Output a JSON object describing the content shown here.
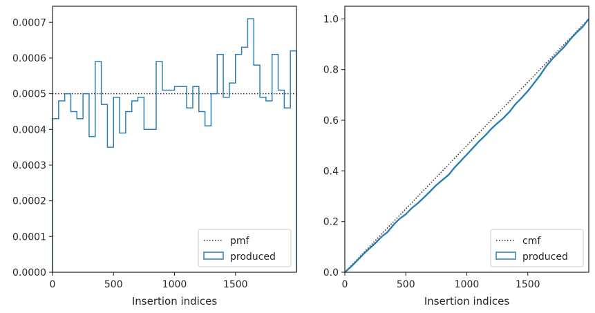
{
  "colors": {
    "produced": "#2a7fb0",
    "reference": "#262626",
    "axes": "#262626"
  },
  "chart_data": [
    {
      "type": "step",
      "xlabel": "Insertion indices",
      "ylabel": "",
      "xlim": [
        0,
        2000
      ],
      "ylim": [
        0,
        0.000745
      ],
      "xticks": [
        0,
        500,
        1000,
        1500
      ],
      "xtick_labels": [
        "0",
        "500",
        "1000",
        "1500"
      ],
      "yticks": [
        0,
        0.0001,
        0.0002,
        0.0003,
        0.0004,
        0.0005,
        0.0006,
        0.0007
      ],
      "ytick_labels": [
        "0.0000",
        "0.0001",
        "0.0002",
        "0.0003",
        "0.0004",
        "0.0005",
        "0.0006",
        "0.0007"
      ],
      "grid": false,
      "legend_position": "bottom-right",
      "legend": [
        "pmf",
        "produced"
      ],
      "reference": {
        "name": "pmf",
        "value": 0.0005
      },
      "bin_width": 50,
      "bin_starts": [
        0,
        50,
        100,
        150,
        200,
        250,
        300,
        350,
        400,
        450,
        500,
        550,
        600,
        650,
        700,
        750,
        800,
        850,
        900,
        950,
        1000,
        1050,
        1100,
        1150,
        1200,
        1250,
        1300,
        1350,
        1400,
        1450,
        1500,
        1550,
        1600,
        1650,
        1700,
        1750,
        1800,
        1850,
        1900,
        1950
      ],
      "values": [
        0.00043,
        0.00048,
        0.0005,
        0.00045,
        0.00043,
        0.0005,
        0.00038,
        0.00059,
        0.00047,
        0.00035,
        0.00049,
        0.00039,
        0.00045,
        0.00048,
        0.00049,
        0.0004,
        0.0004,
        0.00059,
        0.00051,
        0.00051,
        0.00052,
        0.00052,
        0.00046,
        0.00052,
        0.00045,
        0.00041,
        0.0005,
        0.00061,
        0.00049,
        0.00053,
        0.00061,
        0.00063,
        0.00071,
        0.00058,
        0.00049,
        0.00048,
        0.00061,
        0.00051,
        0.00046,
        0.00062
      ]
    },
    {
      "type": "line",
      "xlabel": "Insertion indices",
      "ylabel": "",
      "xlim": [
        0,
        2000
      ],
      "ylim": [
        0,
        1.05
      ],
      "xticks": [
        0,
        500,
        1000,
        1500
      ],
      "xtick_labels": [
        "0",
        "500",
        "1000",
        "1500"
      ],
      "yticks": [
        0,
        0.2,
        0.4,
        0.6,
        0.8,
        1.0
      ],
      "ytick_labels": [
        "0.0",
        "0.2",
        "0.4",
        "0.6",
        "0.8",
        "1.0"
      ],
      "grid": false,
      "legend_position": "bottom-right",
      "legend": [
        "cmf",
        "produced"
      ],
      "reference": {
        "name": "cmf",
        "x": [
          0,
          2000
        ],
        "y": [
          0,
          1.0
        ]
      },
      "x": [
        0,
        50,
        100,
        150,
        200,
        250,
        300,
        350,
        400,
        450,
        500,
        550,
        600,
        650,
        700,
        750,
        800,
        850,
        900,
        950,
        1000,
        1050,
        1100,
        1150,
        1200,
        1250,
        1300,
        1350,
        1400,
        1450,
        1500,
        1550,
        1600,
        1650,
        1700,
        1750,
        1800,
        1850,
        1900,
        1950,
        2000
      ],
      "y": [
        0,
        0.0215,
        0.0455,
        0.0705,
        0.093,
        0.1145,
        0.1395,
        0.1585,
        0.188,
        0.2115,
        0.229,
        0.2535,
        0.273,
        0.2955,
        0.3195,
        0.344,
        0.364,
        0.384,
        0.4135,
        0.439,
        0.4645,
        0.4905,
        0.5165,
        0.5395,
        0.5655,
        0.588,
        0.6085,
        0.6335,
        0.664,
        0.6885,
        0.715,
        0.7455,
        0.777,
        0.8125,
        0.8415,
        0.866,
        0.89,
        0.9205,
        0.946,
        0.969,
        1.0
      ]
    }
  ]
}
